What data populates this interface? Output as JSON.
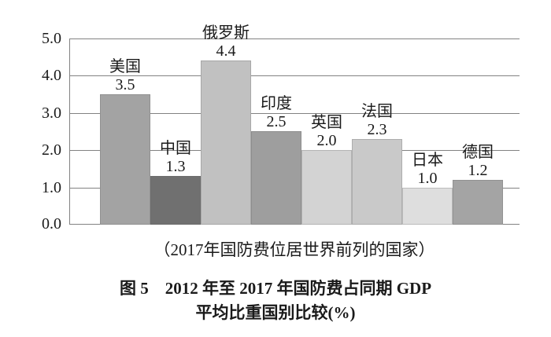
{
  "figure": {
    "caption": "（2017年国防费位居世界前列的国家）",
    "title_line1": "图 5　2012 年至 2017 年国防费占同期 GDP",
    "title_line2": "平均比重国别比较(%)"
  },
  "chart_data": {
    "type": "bar",
    "title": "图 5　2012 年至 2017 年国防费占同期 GDP 平均比重国别比较(%)",
    "caption": "（2017年国防费位居世界前列的国家）",
    "categories": [
      "美国",
      "中国",
      "俄罗斯",
      "印度",
      "英国",
      "法国",
      "日本",
      "德国"
    ],
    "values": [
      3.5,
      1.3,
      4.4,
      2.5,
      2.0,
      2.3,
      1.0,
      1.2
    ],
    "value_labels": [
      "3.5",
      "1.3",
      "4.4",
      "2.5",
      "2.0",
      "2.3",
      "1.0",
      "1.2"
    ],
    "bar_colors": [
      "#a3a3a3",
      "#707070",
      "#c1c1c1",
      "#9e9e9e",
      "#d3d3d3",
      "#c9c9c9",
      "#dedede",
      "#a4a4a4"
    ],
    "y_ticks": [
      "5.0",
      "4.0",
      "3.0",
      "2.0",
      "1.0",
      "0.0"
    ],
    "ylim": [
      0,
      5
    ],
    "xlabel": "",
    "ylabel": "",
    "grid": true,
    "legend_position": "none"
  },
  "colors": {
    "grid": "#828282",
    "axis": "#828282",
    "text": "#1a1a1a",
    "background": "#ffffff"
  }
}
